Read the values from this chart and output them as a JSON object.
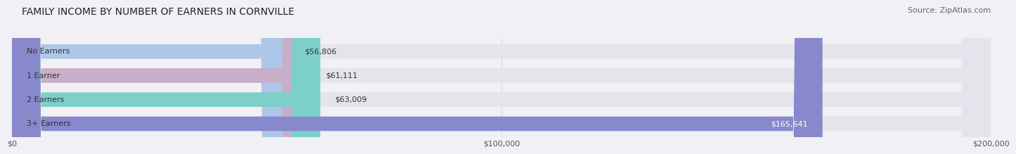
{
  "title": "FAMILY INCOME BY NUMBER OF EARNERS IN CORNVILLE",
  "source": "Source: ZipAtlas.com",
  "categories": [
    "No Earners",
    "1 Earner",
    "2 Earners",
    "3+ Earners"
  ],
  "values": [
    56806,
    61111,
    63009,
    165641
  ],
  "labels": [
    "$56,806",
    "$61,111",
    "$63,009",
    "$165,641"
  ],
  "bar_colors": [
    "#aec6e8",
    "#c8aec8",
    "#7dcfca",
    "#8888cc"
  ],
  "bar_bg_color": "#e4e4ec",
  "bg_color": "#f0f0f5",
  "xlim": [
    0,
    200000
  ],
  "xticks": [
    0,
    100000,
    200000
  ],
  "xtick_labels": [
    "$0",
    "$100,000",
    "$200,000"
  ],
  "title_fontsize": 10,
  "source_fontsize": 8,
  "label_fontsize": 8,
  "cat_fontsize": 8
}
